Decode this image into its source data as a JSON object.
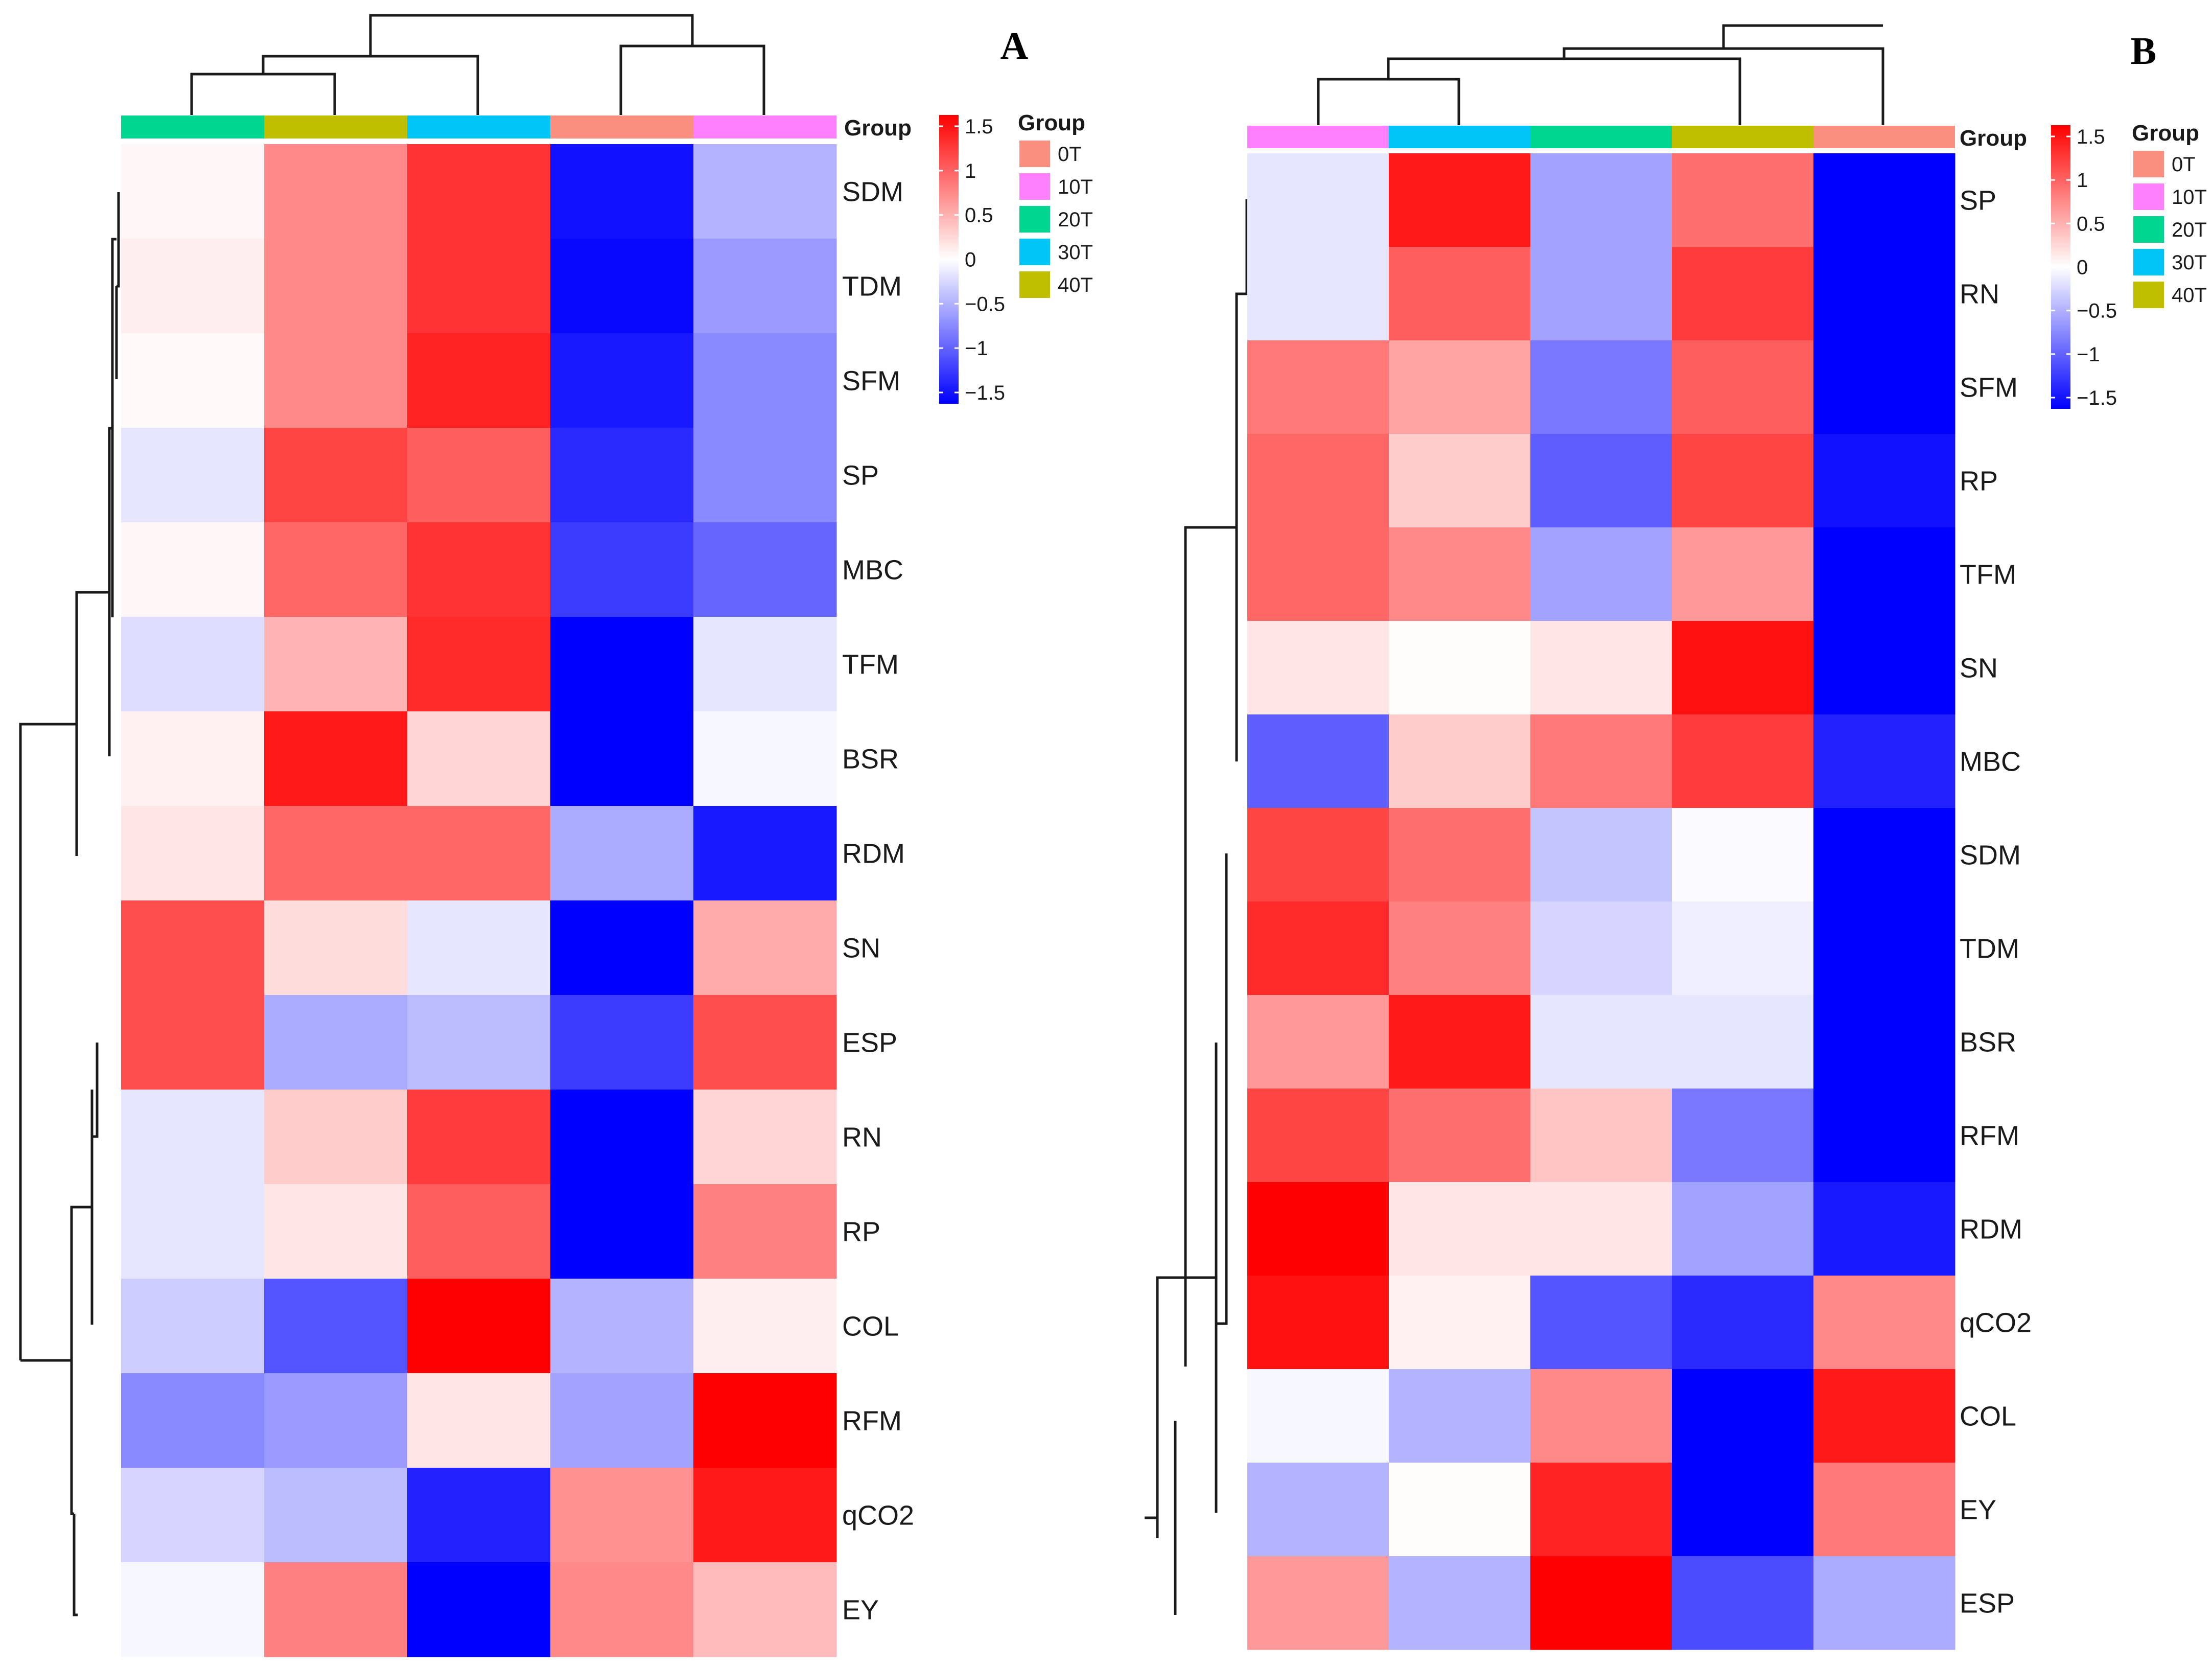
{
  "color_scale": {
    "low": "#0000FF",
    "mid": "#FFFFFF",
    "high": "#FF0000",
    "min": -1.5,
    "max": 1.5
  },
  "legend": {
    "ticks": [
      "1.5",
      "1",
      "0.5",
      "0",
      "−0.5",
      "−1",
      "−1.5"
    ],
    "tick_values": [
      1.5,
      1,
      0.5,
      0,
      -0.5,
      -1,
      -1.5
    ],
    "group_title": "Group",
    "groups": [
      {
        "label": "0T",
        "color": "#FA8F7F"
      },
      {
        "label": "10T",
        "color": "#FF80FF"
      },
      {
        "label": "20T",
        "color": "#00D68F"
      },
      {
        "label": "30T",
        "color": "#00C5F6"
      },
      {
        "label": "40T",
        "color": "#BFBF00"
      }
    ]
  },
  "chart_data": [
    {
      "type": "heatmap",
      "panel": "A",
      "group_label": "Group",
      "columns": [
        "20T",
        "40T",
        "30T",
        "0T",
        "10T"
      ],
      "column_colors": [
        "#00D68F",
        "#BFBF00",
        "#00C5F6",
        "#FA8F7F",
        "#FF80FF"
      ],
      "rows": [
        "SDM",
        "TDM",
        "SFM",
        "SP",
        "MBC",
        "TFM",
        "BSR",
        "RDM",
        "SN",
        "ESP",
        "RN",
        "RP",
        "COL",
        "RFM",
        "qCO2",
        "EY"
      ],
      "values": [
        [
          0.05,
          0.7,
          1.2,
          -1.4,
          -0.45
        ],
        [
          0.1,
          0.7,
          1.2,
          -1.45,
          -0.6
        ],
        [
          0.03,
          0.7,
          1.3,
          -1.35,
          -0.7
        ],
        [
          -0.15,
          1.1,
          0.95,
          -1.25,
          -0.7
        ],
        [
          0.05,
          0.9,
          1.2,
          -1.15,
          -0.9
        ],
        [
          -0.2,
          0.45,
          1.25,
          -1.5,
          -0.15
        ],
        [
          0.08,
          1.35,
          0.25,
          -1.6,
          -0.05
        ],
        [
          0.15,
          0.9,
          0.9,
          -0.5,
          -1.35
        ],
        [
          1.05,
          0.2,
          -0.15,
          -1.7,
          0.5
        ],
        [
          1.05,
          -0.5,
          -0.4,
          -1.15,
          1.05
        ],
        [
          -0.15,
          0.3,
          1.15,
          -1.65,
          0.25
        ],
        [
          -0.15,
          0.15,
          0.95,
          -1.7,
          0.75
        ],
        [
          -0.3,
          -1.0,
          1.65,
          -0.45,
          0.1
        ],
        [
          -0.7,
          -0.6,
          0.15,
          -0.55,
          1.75
        ],
        [
          -0.25,
          -0.4,
          -1.3,
          0.65,
          1.35
        ],
        [
          -0.05,
          0.75,
          -1.75,
          0.7,
          0.4
        ]
      ],
      "row_label_font_px": 54
    },
    {
      "type": "heatmap",
      "panel": "B",
      "group_label": "Group",
      "columns": [
        "10T",
        "30T",
        "20T",
        "40T",
        "0T"
      ],
      "column_colors": [
        "#FF80FF",
        "#00C5F6",
        "#00D68F",
        "#BFBF00",
        "#FA8F7F"
      ],
      "rows": [
        "SP",
        "RN",
        "SFM",
        "RP",
        "TFM",
        "SN",
        "MBC",
        "SDM",
        "TDM",
        "BSR",
        "RFM",
        "RDM",
        "qCO2",
        "COL",
        "EY",
        "ESP"
      ],
      "values": [
        [
          -0.15,
          1.35,
          -0.55,
          0.85,
          -1.5
        ],
        [
          -0.15,
          0.95,
          -0.55,
          1.15,
          -1.5
        ],
        [
          0.8,
          0.55,
          -0.8,
          0.95,
          -1.6
        ],
        [
          0.9,
          0.3,
          -0.95,
          1.1,
          -1.4
        ],
        [
          0.9,
          0.7,
          -0.55,
          0.6,
          -1.75
        ],
        [
          0.15,
          0.02,
          0.15,
          1.4,
          -1.75
        ],
        [
          -0.95,
          0.3,
          0.8,
          1.15,
          -1.3
        ],
        [
          1.1,
          0.85,
          -0.35,
          -0.03,
          -1.75
        ],
        [
          1.25,
          0.75,
          -0.25,
          -0.1,
          -1.75
        ],
        [
          0.6,
          1.35,
          -0.15,
          -0.15,
          -1.75
        ],
        [
          1.1,
          0.85,
          0.35,
          -0.8,
          -1.5
        ],
        [
          1.75,
          0.15,
          0.15,
          -0.55,
          -1.35
        ],
        [
          1.4,
          0.08,
          -1.0,
          -1.25,
          0.7
        ],
        [
          -0.05,
          -0.45,
          0.7,
          -1.5,
          1.35
        ],
        [
          -0.45,
          0.02,
          1.3,
          -1.7,
          0.8
        ],
        [
          0.6,
          -0.45,
          1.75,
          -1.05,
          -0.5
        ]
      ],
      "row_label_font_px": 54
    }
  ]
}
